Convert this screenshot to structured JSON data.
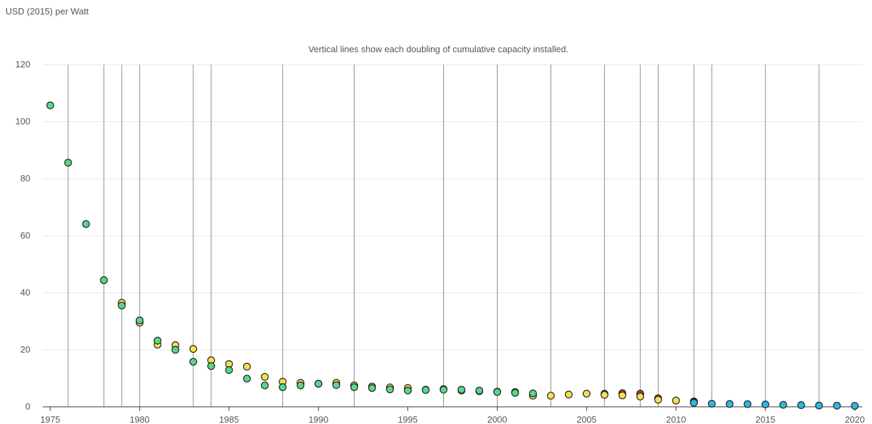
{
  "unit_label": "USD (2015) per Watt",
  "chart_data": {
    "type": "scatter",
    "subtitle": "Vertical lines show each doubling of cumulative capacity installed.",
    "ylabel": "USD (2015) per Watt",
    "xlim": [
      1975,
      2020
    ],
    "ylim": [
      0,
      120
    ],
    "x_ticks": [
      1975,
      1980,
      1985,
      1990,
      1995,
      2000,
      2005,
      2010,
      2015,
      2020
    ],
    "y_ticks": [
      0,
      20,
      40,
      60,
      80,
      100,
      120
    ],
    "grid": "horizontal",
    "doubling_years": [
      1976,
      1978,
      1979,
      1980,
      1983,
      1984,
      1988,
      1992,
      1997,
      2000,
      2003,
      2006,
      2008,
      2009,
      2011,
      2012,
      2015,
      2018
    ],
    "series": [
      {
        "color": "#c0392b",
        "points": [
          [
            2002,
            4.2
          ],
          [
            2006,
            4.6
          ],
          [
            2007,
            4.8
          ],
          [
            2008,
            4.6
          ],
          [
            2009,
            3.0
          ],
          [
            2011,
            1.9
          ]
        ]
      },
      {
        "color": "#f4e04d",
        "points": [
          [
            1979,
            36.5
          ],
          [
            1980,
            29.5
          ],
          [
            1981,
            21.8
          ],
          [
            1982,
            21.6
          ],
          [
            1983,
            20.3
          ],
          [
            1984,
            16.3
          ],
          [
            1985,
            15.0
          ],
          [
            1986,
            14.1
          ],
          [
            1987,
            10.5
          ],
          [
            1988,
            8.8
          ],
          [
            1989,
            8.4
          ],
          [
            1990,
            8.1
          ],
          [
            1991,
            8.4
          ],
          [
            1992,
            7.5
          ],
          [
            1993,
            7.1
          ],
          [
            1994,
            6.8
          ],
          [
            1995,
            6.6
          ],
          [
            1996,
            6.0
          ],
          [
            1997,
            6.2
          ],
          [
            1998,
            5.7
          ],
          [
            1999,
            5.5
          ],
          [
            2000,
            5.3
          ],
          [
            2001,
            5.2
          ],
          [
            2002,
            3.9
          ],
          [
            2003,
            3.9
          ],
          [
            2004,
            4.3
          ],
          [
            2005,
            4.6
          ],
          [
            2006,
            4.2
          ],
          [
            2007,
            4.0
          ],
          [
            2008,
            3.6
          ],
          [
            2009,
            2.5
          ],
          [
            2010,
            2.2
          ],
          [
            2011,
            1.5
          ]
        ]
      },
      {
        "color": "#58d68d",
        "points": [
          [
            1975,
            105.7
          ],
          [
            1976,
            85.6
          ],
          [
            1977,
            64.1
          ],
          [
            1978,
            44.4
          ],
          [
            1979,
            35.5
          ],
          [
            1980,
            30.3
          ],
          [
            1981,
            23.2
          ],
          [
            1982,
            20.0
          ],
          [
            1983,
            15.8
          ],
          [
            1984,
            14.3
          ],
          [
            1985,
            12.9
          ],
          [
            1986,
            9.9
          ],
          [
            1987,
            7.5
          ],
          [
            1988,
            6.9
          ],
          [
            1989,
            7.5
          ],
          [
            1990,
            8.1
          ],
          [
            1991,
            7.6
          ],
          [
            1992,
            6.9
          ],
          [
            1993,
            6.6
          ],
          [
            1994,
            6.1
          ],
          [
            1995,
            5.7
          ],
          [
            1996,
            5.9
          ],
          [
            1997,
            6.0
          ],
          [
            1998,
            6.0
          ],
          [
            1999,
            5.7
          ],
          [
            2000,
            5.2
          ],
          [
            2001,
            4.9
          ],
          [
            2002,
            4.7
          ]
        ]
      },
      {
        "color": "#2fb7e0",
        "points": [
          [
            2011,
            1.4
          ],
          [
            2012,
            1.1
          ],
          [
            2013,
            1.0
          ],
          [
            2014,
            0.95
          ],
          [
            2015,
            0.85
          ],
          [
            2016,
            0.7
          ],
          [
            2017,
            0.6
          ],
          [
            2018,
            0.45
          ],
          [
            2019,
            0.4
          ],
          [
            2020,
            0.35
          ]
        ]
      }
    ]
  }
}
